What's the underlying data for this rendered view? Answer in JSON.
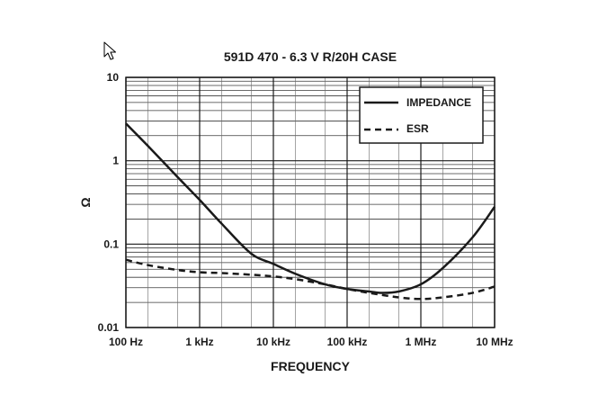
{
  "chart_data": {
    "type": "line",
    "title": "591D 470 - 6.3 V R/20H CASE",
    "xlabel": "FREQUENCY",
    "ylabel": "Ω",
    "x_scale": "log",
    "y_scale": "log",
    "xlim": [
      100,
      10000000
    ],
    "ylim": [
      0.01,
      10
    ],
    "grid": true,
    "legend_position": "top-right",
    "x_ticks": [
      {
        "value": 100,
        "label": "100 Hz"
      },
      {
        "value": 1000,
        "label": "1 kHz"
      },
      {
        "value": 10000,
        "label": "10 kHz"
      },
      {
        "value": 100000,
        "label": "100 kHz"
      },
      {
        "value": 1000000,
        "label": "1 MHz"
      },
      {
        "value": 10000000,
        "label": "10 MHz"
      }
    ],
    "y_ticks": [
      {
        "value": 10,
        "label": "10"
      },
      {
        "value": 1,
        "label": "1"
      },
      {
        "value": 0.1,
        "label": "0.1"
      },
      {
        "value": 0.01,
        "label": "0.01"
      }
    ],
    "series": [
      {
        "name": "IMPEDANCE",
        "style": "solid",
        "color": "#1a1a1a",
        "x": [
          100,
          200,
          500,
          1000,
          2000,
          5000,
          10000,
          20000,
          50000,
          100000,
          200000,
          300000,
          500000,
          1000000,
          2000000,
          5000000,
          10000000
        ],
        "y": [
          2.8,
          1.5,
          0.64,
          0.34,
          0.175,
          0.077,
          0.058,
          0.044,
          0.033,
          0.029,
          0.027,
          0.026,
          0.027,
          0.033,
          0.052,
          0.12,
          0.28
        ]
      },
      {
        "name": "ESR",
        "style": "dashed",
        "color": "#1a1a1a",
        "x": [
          100,
          200,
          500,
          1000,
          2000,
          5000,
          10000,
          20000,
          50000,
          100000,
          200000,
          500000,
          1000000,
          2000000,
          5000000,
          10000000
        ],
        "y": [
          0.065,
          0.056,
          0.049,
          0.046,
          0.045,
          0.043,
          0.041,
          0.038,
          0.033,
          0.029,
          0.026,
          0.023,
          0.022,
          0.023,
          0.026,
          0.031
        ]
      }
    ]
  }
}
